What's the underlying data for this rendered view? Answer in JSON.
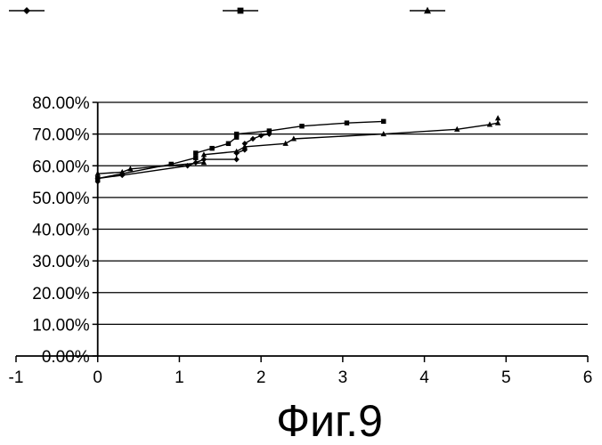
{
  "figure": {
    "caption": "Фиг.9"
  },
  "chart_data": {
    "type": "line",
    "title": "",
    "xlabel": "",
    "ylabel": "",
    "xlim": [
      -1,
      6
    ],
    "ylim": [
      0,
      80
    ],
    "x_ticks": [
      -1,
      0,
      1,
      2,
      3,
      4,
      5,
      6
    ],
    "y_ticks": [
      0,
      10,
      20,
      30,
      40,
      50,
      60,
      70,
      80
    ],
    "x_tick_labels": [
      "-1",
      "0",
      "1",
      "2",
      "3",
      "4",
      "5",
      "6"
    ],
    "y_tick_labels": [
      "0.00%",
      "10.00%",
      "20.00%",
      "30.00%",
      "40.00%",
      "50.00%",
      "60.00%",
      "70.00%",
      "80.00%"
    ],
    "grid": {
      "horizontal": true,
      "vertical": false
    },
    "legend": {
      "placement": "top"
    },
    "series": [
      {
        "marker": "diamond",
        "points": [
          [
            0,
            55
          ],
          [
            0,
            56
          ],
          [
            0.3,
            57
          ],
          [
            1.1,
            60
          ],
          [
            1.2,
            61
          ],
          [
            1.3,
            62
          ],
          [
            1.7,
            62
          ],
          [
            1.7,
            64
          ],
          [
            1.8,
            65
          ],
          [
            1.8,
            67
          ],
          [
            1.9,
            68.5
          ],
          [
            2.0,
            69.5
          ],
          [
            2.1,
            70
          ]
        ]
      },
      {
        "marker": "square",
        "points": [
          [
            0,
            56
          ],
          [
            0.9,
            60.5
          ],
          [
            1.2,
            62.5
          ],
          [
            1.2,
            64
          ],
          [
            1.4,
            65.5
          ],
          [
            1.6,
            67
          ],
          [
            1.7,
            69
          ],
          [
            1.7,
            70
          ],
          [
            2.1,
            71
          ],
          [
            2.5,
            72.5
          ],
          [
            3.05,
            73.5
          ],
          [
            3.5,
            74
          ]
        ]
      },
      {
        "marker": "triangle",
        "points": [
          [
            0,
            57.5
          ],
          [
            0.3,
            58
          ],
          [
            0.4,
            59
          ],
          [
            1.3,
            61
          ],
          [
            1.3,
            63.5
          ],
          [
            1.7,
            64.5
          ],
          [
            1.8,
            66
          ],
          [
            2.3,
            67
          ],
          [
            2.4,
            68.5
          ],
          [
            3.5,
            70
          ],
          [
            4.4,
            71.5
          ],
          [
            4.8,
            73
          ],
          [
            4.9,
            73.5
          ],
          [
            4.9,
            75
          ]
        ]
      }
    ]
  }
}
